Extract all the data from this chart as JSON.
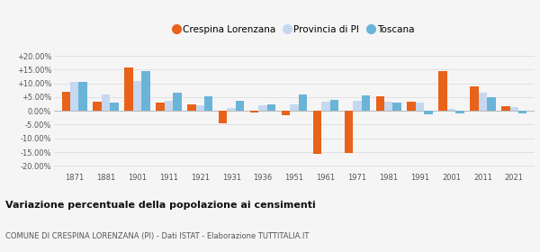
{
  "years": [
    1871,
    1881,
    1901,
    1911,
    1921,
    1931,
    1936,
    1951,
    1961,
    1971,
    1981,
    1991,
    2001,
    2011,
    2021
  ],
  "crespina": [
    6.8,
    3.5,
    15.8,
    3.0,
    2.5,
    -4.5,
    -0.5,
    -1.5,
    -15.5,
    -15.3,
    5.3,
    3.5,
    14.4,
    8.8,
    1.8
  ],
  "provincia": [
    10.5,
    5.8,
    11.0,
    3.8,
    2.0,
    1.2,
    2.0,
    2.3,
    3.5,
    3.7,
    3.3,
    3.0,
    0.8,
    6.5,
    1.3
  ],
  "toscana": [
    10.5,
    3.0,
    14.5,
    6.5,
    5.2,
    3.8,
    2.2,
    6.1,
    4.0,
    5.6,
    3.0,
    -1.3,
    -0.8,
    4.9,
    -0.8
  ],
  "color_crespina": "#e8621a",
  "color_provincia": "#c5d8f0",
  "color_toscana": "#6ab4d8",
  "title": "Variazione percentuale della popolazione ai censimenti",
  "subtitle": "COMUNE DI CRESPINA LORENZANA (PI) - Dati ISTAT - Elaborazione TUTTITALIA.IT",
  "legend_labels": [
    "Crespina Lorenzana",
    "Provincia di PI",
    "Toscana"
  ],
  "ylim": [
    -22,
    22
  ],
  "yticks": [
    -20,
    -15,
    -10,
    -5,
    0,
    5,
    10,
    15,
    20
  ],
  "ytick_labels": [
    "-20.00%",
    "-15.00%",
    "-10.00%",
    "-5.00%",
    "0.00%",
    "+5.00%",
    "+10.00%",
    "+15.00%",
    "+20.00%"
  ],
  "background_color": "#f5f5f5",
  "grid_color": "#dddddd"
}
